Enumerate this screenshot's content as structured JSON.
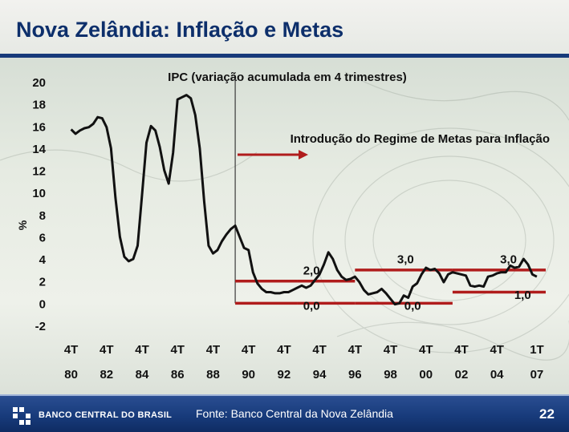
{
  "slide": {
    "title": "Nova Zelândia: Inflação e Metas",
    "page_number": "22",
    "source": "Fonte: Banco Central da Nova Zelândia",
    "logo_text": "BANCO CENTRAL DO BRASIL"
  },
  "colors": {
    "series": "#111111",
    "target": "#b01c1c",
    "brand": "#173a7a"
  },
  "chart_data": {
    "type": "line",
    "title": "IPC (variação acumulada em 4 trimestres)",
    "ylabel": "%",
    "ylim": [
      -2,
      20
    ],
    "yticks": [
      20,
      18,
      16,
      14,
      12,
      10,
      8,
      6,
      4,
      2,
      0,
      -2
    ],
    "xlim": [
      1980.0,
      2007.5
    ],
    "xticks": [
      {
        "x": 1980.75,
        "q": "4T",
        "y": "80"
      },
      {
        "x": 1982.75,
        "q": "4T",
        "y": "82"
      },
      {
        "x": 1984.75,
        "q": "4T",
        "y": "84"
      },
      {
        "x": 1986.75,
        "q": "4T",
        "y": "86"
      },
      {
        "x": 1988.75,
        "q": "4T",
        "y": "88"
      },
      {
        "x": 1990.75,
        "q": "4T",
        "y": "90"
      },
      {
        "x": 1992.75,
        "q": "4T",
        "y": "92"
      },
      {
        "x": 1994.75,
        "q": "4T",
        "y": "94"
      },
      {
        "x": 1996.75,
        "q": "4T",
        "y": "96"
      },
      {
        "x": 1998.75,
        "q": "4T",
        "y": "98"
      },
      {
        "x": 2000.75,
        "q": "4T",
        "y": "00"
      },
      {
        "x": 2002.75,
        "q": "4T",
        "y": "02"
      },
      {
        "x": 2004.75,
        "q": "4T",
        "y": "04"
      },
      {
        "x": 2007.0,
        "q": "1T",
        "y": "07"
      }
    ],
    "series": [
      {
        "values": [
          [
            1980.75,
            15.7
          ],
          [
            1981.0,
            15.3
          ],
          [
            1981.25,
            15.6
          ],
          [
            1981.5,
            15.8
          ],
          [
            1981.75,
            15.9
          ],
          [
            1982.0,
            16.2
          ],
          [
            1982.25,
            16.8
          ],
          [
            1982.5,
            16.7
          ],
          [
            1982.75,
            15.9
          ],
          [
            1983.0,
            14.0
          ],
          [
            1983.25,
            9.5
          ],
          [
            1983.5,
            6.0
          ],
          [
            1983.75,
            4.2
          ],
          [
            1984.0,
            3.8
          ],
          [
            1984.25,
            4.0
          ],
          [
            1984.5,
            5.2
          ],
          [
            1984.75,
            9.8
          ],
          [
            1985.0,
            14.5
          ],
          [
            1985.25,
            16.0
          ],
          [
            1985.5,
            15.6
          ],
          [
            1985.75,
            14.1
          ],
          [
            1986.0,
            12.0
          ],
          [
            1986.25,
            10.8
          ],
          [
            1986.5,
            13.6
          ],
          [
            1986.75,
            18.4
          ],
          [
            1987.0,
            18.6
          ],
          [
            1987.25,
            18.8
          ],
          [
            1987.5,
            18.5
          ],
          [
            1987.75,
            17.0
          ],
          [
            1988.0,
            14.0
          ],
          [
            1988.25,
            9.2
          ],
          [
            1988.5,
            5.2
          ],
          [
            1988.75,
            4.5
          ],
          [
            1989.0,
            4.8
          ],
          [
            1989.25,
            5.6
          ],
          [
            1989.5,
            6.2
          ],
          [
            1989.75,
            6.7
          ],
          [
            1990.0,
            7.0
          ],
          [
            1990.25,
            6.0
          ],
          [
            1990.5,
            5.0
          ],
          [
            1990.75,
            4.8
          ],
          [
            1991.0,
            2.8
          ],
          [
            1991.25,
            1.8
          ],
          [
            1991.5,
            1.3
          ],
          [
            1991.75,
            1.0
          ],
          [
            1992.0,
            1.0
          ],
          [
            1992.25,
            0.9
          ],
          [
            1992.5,
            0.9
          ],
          [
            1992.75,
            1.0
          ],
          [
            1993.0,
            1.0
          ],
          [
            1993.25,
            1.2
          ],
          [
            1993.5,
            1.4
          ],
          [
            1993.75,
            1.6
          ],
          [
            1994.0,
            1.4
          ],
          [
            1994.25,
            1.6
          ],
          [
            1994.5,
            2.1
          ],
          [
            1994.75,
            2.6
          ],
          [
            1995.0,
            3.5
          ],
          [
            1995.25,
            4.6
          ],
          [
            1995.5,
            4.0
          ],
          [
            1995.75,
            3.0
          ],
          [
            1996.0,
            2.4
          ],
          [
            1996.25,
            2.1
          ],
          [
            1996.5,
            2.2
          ],
          [
            1996.75,
            2.4
          ],
          [
            1997.0,
            1.9
          ],
          [
            1997.25,
            1.2
          ],
          [
            1997.5,
            0.8
          ],
          [
            1997.75,
            0.9
          ],
          [
            1998.0,
            1.0
          ],
          [
            1998.25,
            1.3
          ],
          [
            1998.5,
            0.9
          ],
          [
            1998.75,
            0.4
          ],
          [
            1999.0,
            -0.1
          ],
          [
            1999.25,
            0.0
          ],
          [
            1999.5,
            0.7
          ],
          [
            1999.75,
            0.5
          ],
          [
            2000.0,
            1.5
          ],
          [
            2000.25,
            1.8
          ],
          [
            2000.5,
            2.6
          ],
          [
            2000.75,
            3.2
          ],
          [
            2001.0,
            3.0
          ],
          [
            2001.25,
            3.1
          ],
          [
            2001.5,
            2.7
          ],
          [
            2001.75,
            1.9
          ],
          [
            2002.0,
            2.6
          ],
          [
            2002.25,
            2.8
          ],
          [
            2002.5,
            2.7
          ],
          [
            2002.75,
            2.6
          ],
          [
            2003.0,
            2.5
          ],
          [
            2003.25,
            1.6
          ],
          [
            2003.5,
            1.5
          ],
          [
            2003.75,
            1.6
          ],
          [
            2004.0,
            1.5
          ],
          [
            2004.25,
            2.4
          ],
          [
            2004.5,
            2.5
          ],
          [
            2004.75,
            2.7
          ],
          [
            2005.0,
            2.8
          ],
          [
            2005.25,
            2.8
          ],
          [
            2005.5,
            3.4
          ],
          [
            2005.75,
            3.2
          ],
          [
            2006.0,
            3.3
          ],
          [
            2006.25,
            4.0
          ],
          [
            2006.5,
            3.5
          ],
          [
            2006.75,
            2.6
          ],
          [
            2007.0,
            2.4
          ]
        ]
      }
    ],
    "target_bands": [
      {
        "x0": 1990.0,
        "x1": 1993.5,
        "lower": 0.0,
        "upper": 2.0
      },
      {
        "x0": 1993.5,
        "x1": 1996.75,
        "lower": 0.0,
        "upper": 2.0
      },
      {
        "x0": 1996.75,
        "x1": 2002.25,
        "lower": 0.0,
        "upper": 3.0
      },
      {
        "x0": 2002.25,
        "x1": 2007.5,
        "lower": 1.0,
        "upper": 3.0
      }
    ],
    "regime_start": 1990.0,
    "annotations": {
      "regime": "Introdução do Regime de Metas para Inflação",
      "band_labels": [
        {
          "text": "2,0",
          "x": 1994.3,
          "y": 2.6
        },
        {
          "text": "0,0",
          "x": 1994.3,
          "y": -0.6
        },
        {
          "text": "3,0",
          "x": 1999.6,
          "y": 3.6
        },
        {
          "text": "0,0",
          "x": 2000.0,
          "y": -0.6
        },
        {
          "text": "3,0",
          "x": 2005.4,
          "y": 3.6
        },
        {
          "text": "1,0",
          "x": 2006.2,
          "y": 0.4
        }
      ]
    }
  }
}
